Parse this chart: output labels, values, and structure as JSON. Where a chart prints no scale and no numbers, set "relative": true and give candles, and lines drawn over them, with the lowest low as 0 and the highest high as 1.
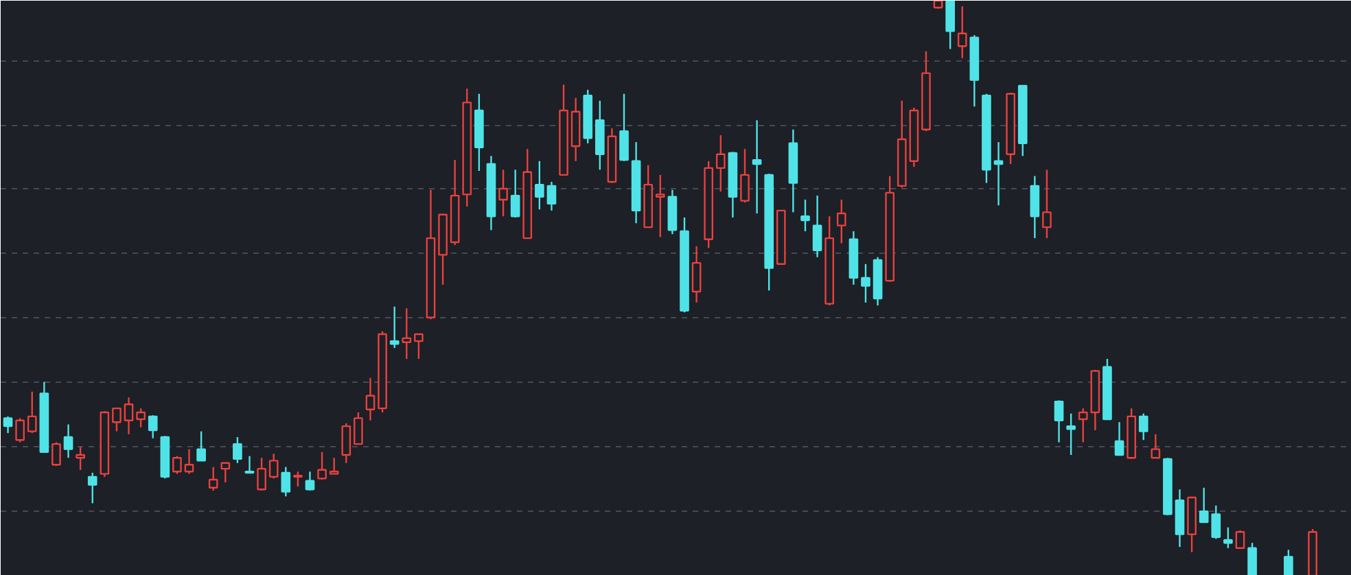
{
  "chart_data": {
    "type": "candlestick",
    "relative": true,
    "grid": "y",
    "line_style": "dashed",
    "categories": [
      null,
      null,
      null,
      null,
      null,
      null,
      null,
      null,
      null,
      null,
      null,
      null,
      null,
      null,
      null,
      null,
      null,
      null,
      null,
      null,
      null,
      null,
      null,
      null,
      null,
      null,
      null,
      null,
      null,
      null,
      null,
      null,
      null,
      null,
      null,
      null,
      null,
      null,
      null,
      null,
      null,
      null,
      null,
      null,
      null,
      null,
      null,
      null,
      null,
      null,
      null,
      null,
      null,
      null,
      null,
      null,
      null,
      null,
      null,
      null,
      null,
      null,
      null,
      null,
      null,
      null,
      null,
      null,
      null,
      null,
      null,
      null,
      null,
      null,
      null,
      null,
      null,
      null,
      null,
      null,
      null,
      null,
      null,
      null,
      null,
      null,
      null,
      null,
      null,
      null,
      null,
      null,
      null,
      null,
      null,
      null,
      null,
      null,
      null,
      null,
      null,
      null,
      null,
      null,
      null,
      null,
      null,
      null,
      null
    ],
    "ohlc": [
      [
        0.274,
        0.277,
        0.248,
        0.26
      ],
      [
        0.236,
        0.274,
        0.232,
        0.27
      ],
      [
        0.251,
        0.32,
        0.248,
        0.277
      ],
      [
        0.317,
        0.337,
        0.215,
        0.215
      ],
      [
        0.193,
        0.232,
        0.191,
        0.229
      ],
      [
        0.241,
        0.263,
        0.205,
        0.22
      ],
      [
        0.205,
        0.224,
        0.184,
        0.21
      ],
      [
        0.172,
        0.179,
        0.126,
        0.158
      ],
      [
        0.177,
        0.286,
        0.172,
        0.284
      ],
      [
        0.267,
        0.291,
        0.251,
        0.291
      ],
      [
        0.27,
        0.31,
        0.246,
        0.298
      ],
      [
        0.272,
        0.291,
        0.258,
        0.284
      ],
      [
        0.277,
        0.279,
        0.239,
        0.253
      ],
      [
        0.241,
        0.243,
        0.169,
        0.172
      ],
      [
        0.181,
        0.208,
        0.177,
        0.205
      ],
      [
        0.181,
        0.22,
        0.177,
        0.193
      ],
      [
        0.22,
        0.251,
        0.2,
        0.2
      ],
      [
        0.153,
        0.189,
        0.148,
        0.167
      ],
      [
        0.186,
        0.196,
        0.162,
        0.196
      ],
      [
        0.229,
        0.241,
        0.196,
        0.203
      ],
      [
        0.181,
        0.208,
        0.179,
        0.179
      ],
      [
        0.15,
        0.205,
        0.148,
        0.186
      ],
      [
        0.172,
        0.212,
        0.169,
        0.2
      ],
      [
        0.179,
        0.189,
        0.138,
        0.146
      ],
      [
        0.172,
        0.181,
        0.155,
        0.174
      ],
      [
        0.165,
        0.181,
        0.148,
        0.15
      ],
      [
        0.169,
        0.215,
        0.167,
        0.184
      ],
      [
        0.177,
        0.205,
        0.177,
        0.181
      ],
      [
        0.21,
        0.265,
        0.196,
        0.26
      ],
      [
        0.229,
        0.284,
        0.229,
        0.274
      ],
      [
        0.289,
        0.344,
        0.27,
        0.313
      ],
      [
        0.291,
        0.425,
        0.284,
        0.42
      ],
      [
        0.408,
        0.468,
        0.396,
        0.403
      ],
      [
        0.406,
        0.465,
        0.377,
        0.413
      ],
      [
        0.408,
        0.42,
        0.377,
        0.42
      ],
      [
        0.449,
        0.671,
        0.446,
        0.587
      ],
      [
        0.558,
        0.628,
        0.506,
        0.628
      ],
      [
        0.58,
        0.723,
        0.575,
        0.661
      ],
      [
        0.663,
        0.847,
        0.642,
        0.823
      ],
      [
        0.809,
        0.838,
        0.704,
        0.745
      ],
      [
        0.716,
        0.73,
        0.601,
        0.625
      ],
      [
        0.654,
        0.706,
        0.625,
        0.673
      ],
      [
        0.661,
        0.706,
        0.623,
        0.625
      ],
      [
        0.587,
        0.742,
        0.587,
        0.702
      ],
      [
        0.68,
        0.721,
        0.637,
        0.659
      ],
      [
        0.678,
        0.685,
        0.635,
        0.647
      ],
      [
        0.697,
        0.854,
        0.697,
        0.809
      ],
      [
        0.747,
        0.831,
        0.721,
        0.807
      ],
      [
        0.835,
        0.845,
        0.752,
        0.761
      ],
      [
        0.792,
        0.826,
        0.706,
        0.733
      ],
      [
        0.685,
        0.778,
        0.683,
        0.764
      ],
      [
        0.773,
        0.838,
        0.721,
        0.723
      ],
      [
        0.721,
        0.754,
        0.613,
        0.635
      ],
      [
        0.606,
        0.714,
        0.606,
        0.68
      ],
      [
        0.659,
        0.697,
        0.589,
        0.663
      ],
      [
        0.659,
        0.671,
        0.594,
        0.601
      ],
      [
        0.599,
        0.623,
        0.458,
        0.461
      ],
      [
        0.494,
        0.573,
        0.475,
        0.544
      ],
      [
        0.585,
        0.721,
        0.57,
        0.709
      ],
      [
        0.709,
        0.766,
        0.668,
        0.733
      ],
      [
        0.735,
        0.737,
        0.623,
        0.659
      ],
      [
        0.652,
        0.742,
        0.649,
        0.697
      ],
      [
        0.723,
        0.792,
        0.63,
        0.716
      ],
      [
        0.697,
        0.699,
        0.496,
        0.535
      ],
      [
        0.542,
        0.635,
        0.542,
        0.635
      ],
      [
        0.752,
        0.776,
        0.632,
        0.683
      ],
      [
        0.625,
        0.654,
        0.599,
        0.618
      ],
      [
        0.609,
        0.661,
        0.554,
        0.566
      ],
      [
        0.473,
        0.625,
        0.47,
        0.587
      ],
      [
        0.609,
        0.654,
        0.578,
        0.63
      ],
      [
        0.585,
        0.599,
        0.506,
        0.518
      ],
      [
        0.518,
        0.542,
        0.475,
        0.504
      ],
      [
        0.549,
        0.554,
        0.47,
        0.482
      ],
      [
        0.513,
        0.695,
        0.511,
        0.666
      ],
      [
        0.678,
        0.826,
        0.675,
        0.759
      ],
      [
        0.721,
        0.814,
        0.711,
        0.809
      ],
      [
        0.776,
        0.912,
        0.773,
        0.874
      ],
      [
        0.988,
        1,
        0.986,
        1
      ],
      [
        1,
        1,
        0.916,
        0.947
      ],
      [
        0.921,
        0.99,
        0.9,
        0.943
      ],
      [
        0.936,
        0.94,
        0.816,
        0.862
      ],
      [
        0.835,
        0.838,
        0.683,
        0.706
      ],
      [
        0.721,
        0.754,
        0.644,
        0.716
      ],
      [
        0.733,
        0.84,
        0.716,
        0.838
      ],
      [
        0.852,
        0.852,
        0.73,
        0.752
      ],
      [
        0.678,
        0.695,
        0.587,
        0.625
      ],
      [
        0.606,
        0.706,
        0.587,
        0.632
      ],
      [
        0.303,
        0.305,
        0.232,
        0.27
      ],
      [
        0.26,
        0.282,
        0.21,
        0.255
      ],
      [
        0.272,
        0.291,
        0.232,
        0.284
      ],
      [
        0.284,
        0.358,
        0.253,
        0.356
      ],
      [
        0.363,
        0.377,
        0.272,
        0.272
      ],
      [
        0.234,
        0.267,
        0.21,
        0.21
      ],
      [
        0.205,
        0.291,
        0.203,
        0.277
      ],
      [
        0.277,
        0.282,
        0.236,
        0.251
      ],
      [
        0.205,
        0.246,
        0.205,
        0.22
      ],
      [
        0.203,
        0.205,
        0.105,
        0.107
      ],
      [
        0.131,
        0.15,
        0.05,
        0.072
      ],
      [
        0.072,
        0.136,
        0.041,
        0.136
      ],
      [
        0.112,
        0.153,
        0.093,
        0.093
      ],
      [
        0.107,
        0.122,
        0.064,
        0.067
      ],
      [
        0.062,
        0.084,
        0.048,
        0.057
      ],
      [
        0.048,
        0.079,
        0.048,
        0.076
      ],
      [
        0.048,
        0.057,
        0,
        0
      ],
      null,
      null,
      [
        0.033,
        0.045,
        0,
        0
      ],
      null,
      [
        0,
        0.081,
        0,
        0.076
      ]
    ],
    "colors": [
      "#4fe3e8",
      "#e8413f",
      "#e8413f",
      "#4fe3e8",
      "#e8413f",
      "#4fe3e8",
      "#e8413f",
      "#4fe3e8",
      "#e8413f",
      "#e8413f",
      "#e8413f",
      "#e8413f",
      "#4fe3e8",
      "#4fe3e8",
      "#e8413f",
      "#e8413f",
      "#4fe3e8",
      "#e8413f",
      "#e8413f",
      "#4fe3e8",
      "#4fe3e8",
      "#e8413f",
      "#e8413f",
      "#4fe3e8",
      "#e8413f",
      "#4fe3e8",
      "#e8413f",
      "#e8413f",
      "#e8413f",
      "#e8413f",
      "#e8413f",
      "#e8413f",
      "#4fe3e8",
      "#e8413f",
      "#e8413f",
      "#e8413f",
      "#e8413f",
      "#e8413f",
      "#e8413f",
      "#4fe3e8",
      "#4fe3e8",
      "#e8413f",
      "#4fe3e8",
      "#e8413f",
      "#4fe3e8",
      "#4fe3e8",
      "#e8413f",
      "#e8413f",
      "#4fe3e8",
      "#4fe3e8",
      "#e8413f",
      "#4fe3e8",
      "#4fe3e8",
      "#e8413f",
      "#e8413f",
      "#4fe3e8",
      "#4fe3e8",
      "#e8413f",
      "#e8413f",
      "#e8413f",
      "#4fe3e8",
      "#e8413f",
      "#4fe3e8",
      "#4fe3e8",
      "#e8413f",
      "#4fe3e8",
      "#4fe3e8",
      "#4fe3e8",
      "#e8413f",
      "#e8413f",
      "#4fe3e8",
      "#4fe3e8",
      "#4fe3e8",
      "#e8413f",
      "#e8413f",
      "#e8413f",
      "#e8413f",
      "#e8413f",
      "#4fe3e8",
      "#e8413f",
      "#4fe3e8",
      "#4fe3e8",
      "#4fe3e8",
      "#e8413f",
      "#4fe3e8",
      "#4fe3e8",
      "#e8413f",
      "#4fe3e8",
      "#4fe3e8",
      "#e8413f",
      "#e8413f",
      "#4fe3e8",
      "#4fe3e8",
      "#e8413f",
      "#4fe3e8",
      "#e8413f",
      "#4fe3e8",
      "#4fe3e8",
      "#e8413f",
      "#4fe3e8",
      "#4fe3e8",
      "#4fe3e8",
      "#e8413f",
      "#4fe3e8",
      null,
      null,
      "#4fe3e8",
      null,
      "#e8413f"
    ]
  }
}
